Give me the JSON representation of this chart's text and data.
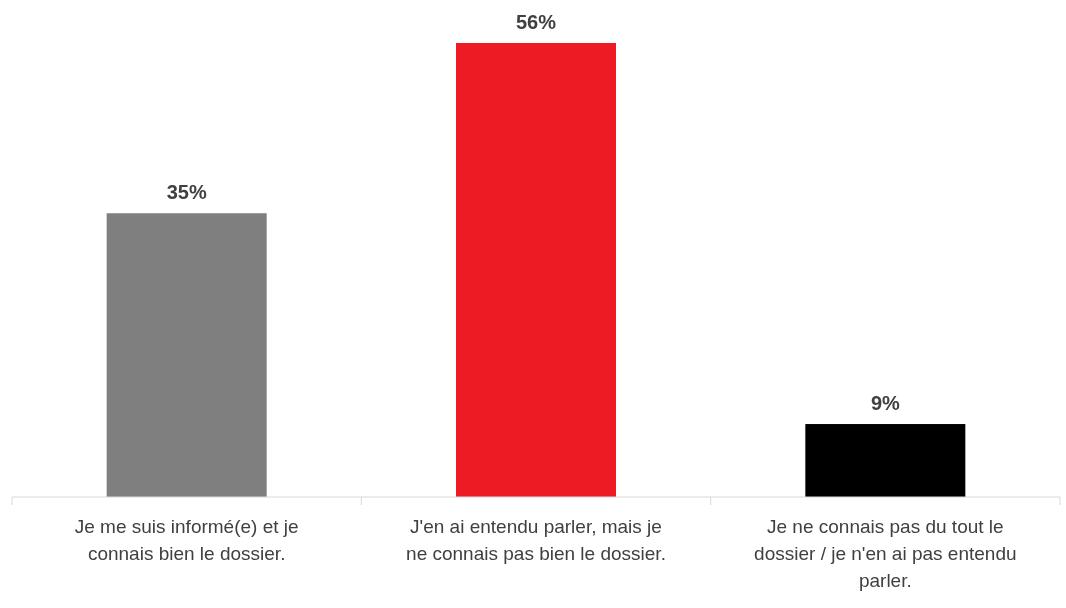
{
  "chart_data": {
    "type": "bar",
    "categories": [
      "Je me suis informé(e) et je connais bien le dossier.",
      "J'en ai entendu parler, mais je ne connais pas bien le dossier.",
      "Je ne connais pas du tout le dossier / je n'en ai pas entendu parler."
    ],
    "values": [
      35,
      56,
      9
    ],
    "colors": [
      "#7f7f7f",
      "#ed1c24",
      "#000000"
    ],
    "value_labels": [
      "35%",
      "56%",
      "9%"
    ]
  }
}
